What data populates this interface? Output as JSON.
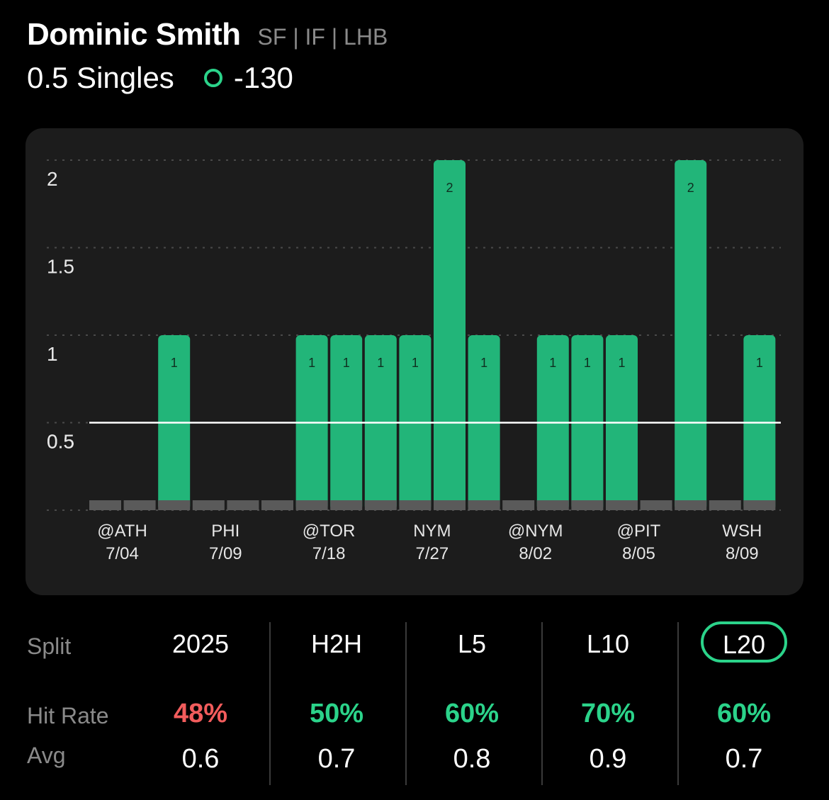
{
  "header": {
    "player_name": "Dominic Smith",
    "player_meta": "SF | IF | LHB",
    "prop_line": "0.5 Singles",
    "odds": "-130",
    "odds_color": "#2bd38a"
  },
  "chart_data": {
    "type": "bar",
    "line_value": 0.5,
    "ylim": [
      0,
      2
    ],
    "yticks": [
      "0.5",
      "1",
      "1.5",
      "2"
    ],
    "bar_color": "#22b579",
    "zero_color": "#5a5a5a",
    "values": [
      0,
      0,
      1,
      0,
      0,
      0,
      1,
      1,
      1,
      1,
      2,
      1,
      0,
      1,
      1,
      1,
      0,
      2,
      0,
      1
    ],
    "x_labels": [
      {
        "team": "@ATH",
        "date": "7/04"
      },
      {
        "team": "PHI",
        "date": "7/09"
      },
      {
        "team": "@TOR",
        "date": "7/18"
      },
      {
        "team": "NYM",
        "date": "7/27"
      },
      {
        "team": "@NYM",
        "date": "8/02"
      },
      {
        "team": "@PIT",
        "date": "8/05"
      },
      {
        "team": "WSH",
        "date": "8/09"
      }
    ]
  },
  "stats": {
    "split_label": "Split",
    "hit_rate_label": "Hit Rate",
    "avg_label": "Avg",
    "columns": [
      {
        "title": "2025",
        "hit_rate": "48%",
        "avg": "0.6",
        "hit_color": "#f25c5c"
      },
      {
        "title": "H2H",
        "hit_rate": "50%",
        "avg": "0.7",
        "hit_color": "#2bd38a"
      },
      {
        "title": "L5",
        "hit_rate": "60%",
        "avg": "0.8",
        "hit_color": "#2bd38a"
      },
      {
        "title": "L10",
        "hit_rate": "70%",
        "avg": "0.9",
        "hit_color": "#2bd38a"
      },
      {
        "title": "L20",
        "hit_rate": "60%",
        "avg": "0.7",
        "hit_color": "#2bd38a",
        "active": true
      }
    ]
  }
}
